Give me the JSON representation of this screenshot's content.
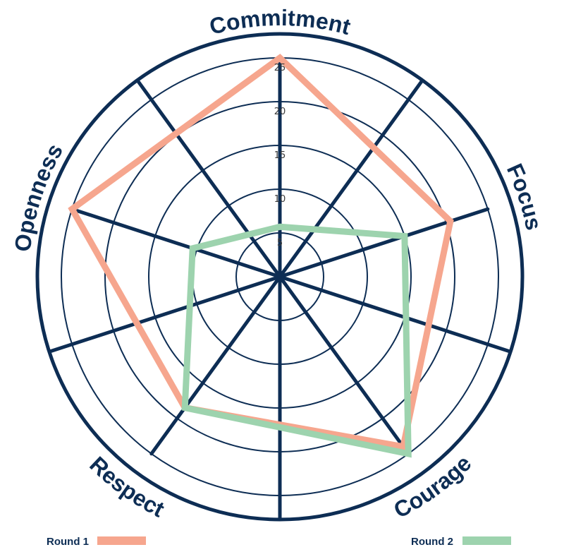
{
  "chart_data": {
    "type": "radar",
    "axes": [
      "Commitment",
      "Focus",
      "Courage",
      "Respect",
      "Openness"
    ],
    "rlim": [
      0,
      25
    ],
    "ticks": [
      5,
      10,
      15,
      20,
      25
    ],
    "tick_labels": [
      "5",
      "10",
      "15",
      "20",
      "25"
    ],
    "series": [
      {
        "name": "Round 1",
        "values": [
          25,
          20.5,
          24,
          18.5,
          25
        ],
        "color": "#f6a68e"
      },
      {
        "name": "Round 2",
        "values": [
          5.7,
          15,
          25,
          18.5,
          10.5
        ],
        "color": "#9dd3ae"
      }
    ],
    "grid": true,
    "legend_position": "bottom"
  },
  "colors": {
    "axis": "#0d2d54",
    "round1": "#f6a68e",
    "round2": "#9dd3ae"
  }
}
